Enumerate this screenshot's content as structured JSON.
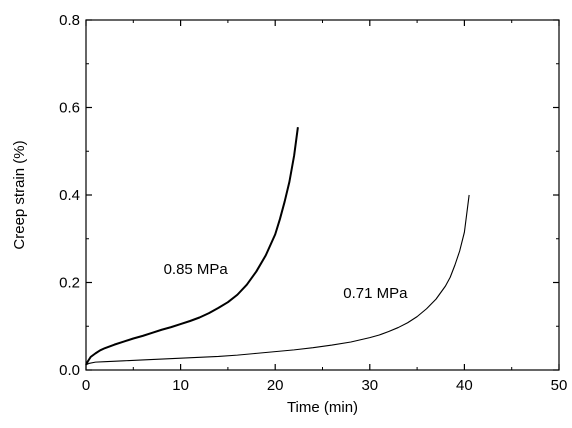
{
  "chart_data": {
    "type": "line",
    "title": "",
    "xlabel": "Time (min)",
    "ylabel": "Creep strain (%)",
    "xlim": [
      0,
      50
    ],
    "ylim": [
      0,
      0.8
    ],
    "x_ticks": [
      0,
      10,
      20,
      30,
      40,
      50
    ],
    "y_ticks": [
      0.0,
      0.2,
      0.4,
      0.6,
      0.8
    ],
    "x_tick_labels": [
      "0",
      "10",
      "20",
      "30",
      "40",
      "50"
    ],
    "y_tick_labels": [
      "0.0",
      "0.2",
      "0.4",
      "0.6",
      "0.8"
    ],
    "grid": false,
    "legend": "none",
    "annotations": [
      {
        "text": "0.85 MPa",
        "x": 8.2,
        "y": 0.22
      },
      {
        "text": "0.71 MPa",
        "x": 27.2,
        "y": 0.165
      }
    ],
    "series": [
      {
        "color": "#000000",
        "x": [
          0,
          0.2,
          0.5,
          1,
          1.5,
          2,
          3,
          4,
          5,
          6,
          7,
          8,
          9,
          10,
          11,
          12,
          13,
          14,
          15,
          16,
          17,
          18,
          19,
          20,
          20.5,
          21,
          21.5,
          22,
          22.4
        ],
        "y": [
          0.012,
          0.02,
          0.03,
          0.038,
          0.045,
          0.05,
          0.058,
          0.065,
          0.072,
          0.078,
          0.085,
          0.092,
          0.098,
          0.105,
          0.112,
          0.12,
          0.13,
          0.142,
          0.155,
          0.172,
          0.195,
          0.225,
          0.262,
          0.31,
          0.345,
          0.385,
          0.43,
          0.49,
          0.555
        ]
      },
      {
        "color": "#000000",
        "x": [
          0,
          0.3,
          1,
          2,
          4,
          6,
          8,
          10,
          12,
          14,
          16,
          18,
          20,
          22,
          24,
          26,
          28,
          30,
          31,
          32,
          33,
          34,
          35,
          36,
          37,
          38,
          38.5,
          39,
          39.5,
          40,
          40.5
        ],
        "y": [
          0.012,
          0.015,
          0.018,
          0.019,
          0.021,
          0.023,
          0.025,
          0.027,
          0.029,
          0.031,
          0.034,
          0.038,
          0.042,
          0.046,
          0.051,
          0.057,
          0.064,
          0.074,
          0.08,
          0.088,
          0.097,
          0.108,
          0.122,
          0.14,
          0.162,
          0.192,
          0.212,
          0.24,
          0.272,
          0.315,
          0.4
        ]
      }
    ]
  }
}
